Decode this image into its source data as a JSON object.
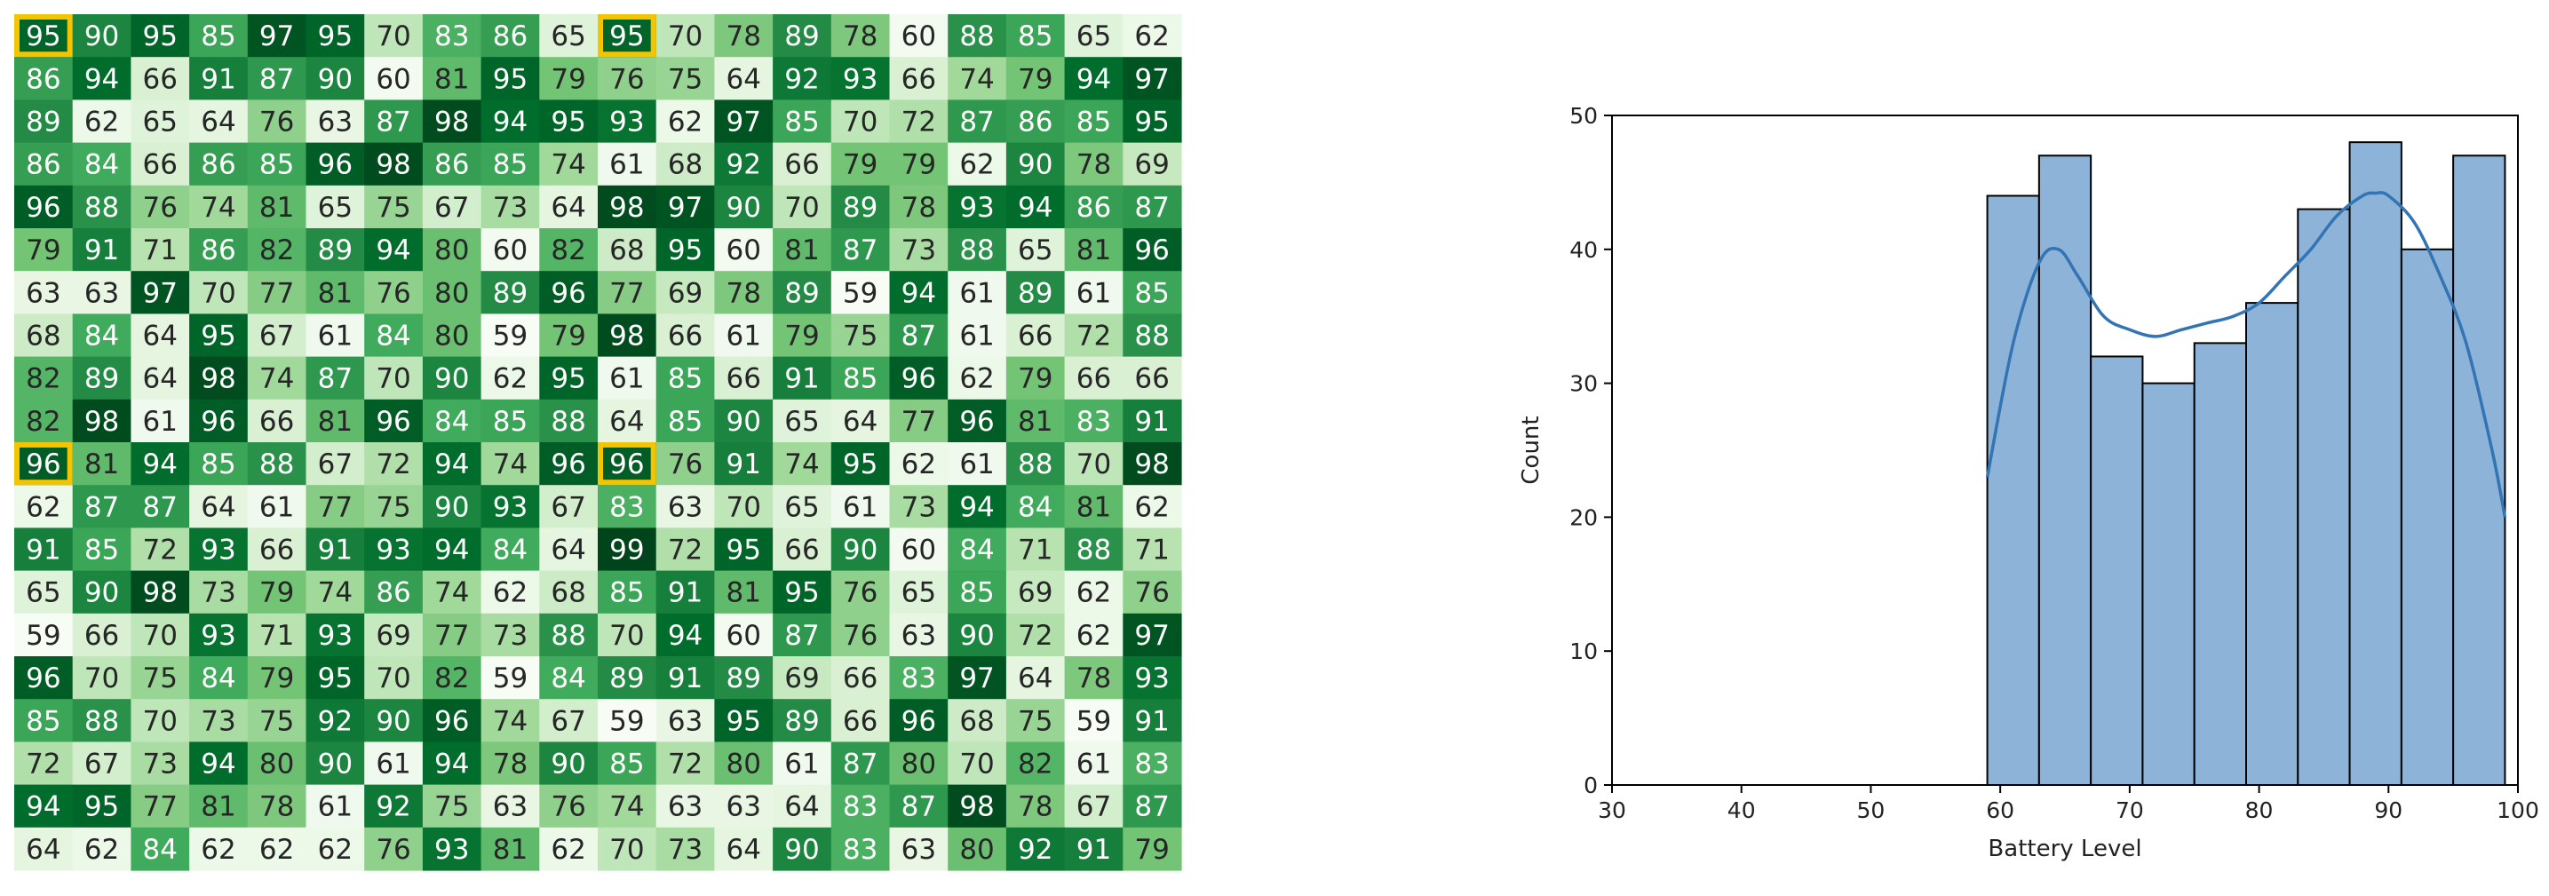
{
  "chart_data": [
    {
      "type": "heatmap",
      "colormap": "Greens",
      "value_range": [
        59,
        99
      ],
      "grid": [
        [
          95,
          90,
          95,
          85,
          97,
          95,
          70,
          83,
          86,
          65,
          95,
          70,
          78,
          89,
          78,
          60,
          88,
          85,
          65,
          62
        ],
        [
          86,
          94,
          66,
          91,
          87,
          90,
          60,
          81,
          95,
          79,
          76,
          75,
          64,
          92,
          93,
          66,
          74,
          79,
          94,
          97
        ],
        [
          89,
          62,
          65,
          64,
          76,
          63,
          87,
          98,
          94,
          95,
          93,
          62,
          97,
          85,
          70,
          72,
          87,
          86,
          85,
          95
        ],
        [
          86,
          84,
          66,
          86,
          85,
          96,
          98,
          86,
          85,
          74,
          61,
          68,
          92,
          66,
          79,
          79,
          62,
          90,
          78,
          69
        ],
        [
          96,
          88,
          76,
          74,
          81,
          65,
          75,
          67,
          73,
          64,
          98,
          97,
          90,
          70,
          89,
          78,
          93,
          94,
          86,
          87
        ],
        [
          79,
          91,
          71,
          86,
          82,
          89,
          94,
          80,
          60,
          82,
          68,
          95,
          60,
          81,
          87,
          73,
          88,
          65,
          81,
          96
        ],
        [
          63,
          63,
          97,
          70,
          77,
          81,
          76,
          80,
          89,
          96,
          77,
          69,
          78,
          89,
          59,
          94,
          61,
          89,
          61,
          85
        ],
        [
          68,
          84,
          64,
          95,
          67,
          61,
          84,
          80,
          59,
          79,
          98,
          66,
          61,
          79,
          75,
          87,
          61,
          66,
          72,
          88
        ],
        [
          82,
          89,
          64,
          98,
          74,
          87,
          70,
          90,
          62,
          95,
          61,
          85,
          66,
          91,
          85,
          96,
          62,
          79,
          66,
          66
        ],
        [
          82,
          98,
          61,
          96,
          66,
          81,
          96,
          84,
          85,
          88,
          64,
          85,
          90,
          65,
          64,
          77,
          96,
          81,
          83,
          91
        ],
        [
          96,
          81,
          94,
          85,
          88,
          67,
          72,
          94,
          74,
          96,
          96,
          76,
          91,
          74,
          95,
          62,
          61,
          88,
          70,
          98
        ],
        [
          62,
          87,
          87,
          64,
          61,
          77,
          75,
          90,
          93,
          67,
          83,
          63,
          70,
          65,
          61,
          73,
          94,
          84,
          81,
          62
        ],
        [
          91,
          85,
          72,
          93,
          66,
          91,
          93,
          94,
          84,
          64,
          99,
          72,
          95,
          66,
          90,
          60,
          84,
          71,
          88,
          71
        ],
        [
          65,
          90,
          98,
          73,
          79,
          74,
          86,
          74,
          62,
          68,
          85,
          91,
          81,
          95,
          76,
          65,
          85,
          69,
          62,
          76
        ],
        [
          59,
          66,
          70,
          93,
          71,
          93,
          69,
          77,
          73,
          88,
          70,
          94,
          60,
          87,
          76,
          63,
          90,
          72,
          62,
          97
        ],
        [
          96,
          70,
          75,
          84,
          79,
          95,
          70,
          82,
          59,
          84,
          89,
          91,
          89,
          69,
          66,
          83,
          97,
          64,
          78,
          93
        ],
        [
          85,
          88,
          70,
          73,
          75,
          92,
          90,
          96,
          74,
          67,
          59,
          63,
          95,
          89,
          66,
          96,
          68,
          75,
          59,
          91
        ],
        [
          72,
          67,
          73,
          94,
          80,
          90,
          61,
          94,
          78,
          90,
          85,
          72,
          80,
          61,
          87,
          80,
          70,
          82,
          61,
          83
        ],
        [
          94,
          95,
          77,
          81,
          78,
          61,
          92,
          75,
          63,
          76,
          74,
          63,
          63,
          64,
          83,
          87,
          98,
          78,
          67,
          87
        ],
        [
          64,
          62,
          84,
          62,
          62,
          62,
          76,
          93,
          81,
          62,
          70,
          73,
          64,
          90,
          83,
          63,
          80,
          92,
          91,
          79
        ]
      ],
      "highlighted_cells": [
        [
          0,
          0
        ],
        [
          0,
          10
        ],
        [
          10,
          0
        ],
        [
          10,
          10
        ]
      ],
      "highlight_color": "#f5c400"
    },
    {
      "type": "bar",
      "subtype": "histogram_with_kde",
      "xlabel": "Battery Level",
      "ylabel": "Count",
      "xlim": [
        30,
        100
      ],
      "ylim": [
        0,
        50
      ],
      "xticks": [
        "30",
        "40",
        "50",
        "60",
        "70",
        "80",
        "90",
        "100"
      ],
      "yticks": [
        "0",
        "10",
        "20",
        "30",
        "40",
        "50"
      ],
      "bin_edges": [
        59,
        63,
        67,
        71,
        75,
        79,
        83,
        87,
        91,
        95,
        99
      ],
      "counts": [
        44,
        47,
        32,
        30,
        33,
        36,
        43,
        48,
        40,
        47
      ],
      "kde_x": [
        59,
        61,
        63,
        64.5,
        66,
        68,
        70,
        72,
        74,
        76,
        78,
        80,
        82,
        84,
        86,
        88,
        89,
        90,
        92,
        94,
        96,
        98,
        99
      ],
      "kde_y": [
        23,
        33,
        39,
        40,
        38,
        35,
        34,
        33.5,
        34,
        34.5,
        35,
        36,
        38,
        40,
        42.5,
        44,
        44.2,
        44,
        42,
        38,
        33,
        25,
        20
      ],
      "bar_color": "#8db4d8",
      "line_color": "#3274b4",
      "grid": false
    }
  ]
}
